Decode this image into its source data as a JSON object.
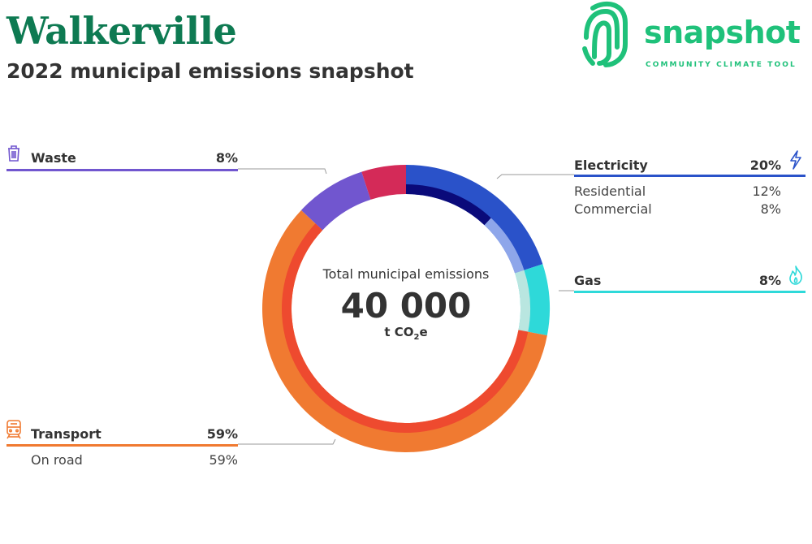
{
  "header": {
    "title": "Walkerville",
    "subtitle": "2022 municipal emissions snapshot"
  },
  "logo": {
    "wordmark": "snapshot",
    "tagline": "COMMUNITY CLIMATE TOOL",
    "icon": "fingerprint-icon",
    "color": "#1fc17a"
  },
  "chart_data": {
    "type": "pie",
    "variant": "donut",
    "center_label": "Total municipal emissions",
    "total_display": "40 000",
    "total": 40000,
    "unit_prefix": "t CO",
    "unit_sub": "2",
    "unit_suffix": "e",
    "categories": [
      {
        "name": "Electricity",
        "pct_label": "20%",
        "value": 20,
        "color": "#2a52c9",
        "icon": "lightning-icon",
        "subcategories": [
          {
            "name": "Residential",
            "pct_label": "12%",
            "value": 12,
            "color": "#0a0a7a"
          },
          {
            "name": "Commercial",
            "pct_label": "8%",
            "value": 8,
            "color": "#8ea6ea"
          }
        ]
      },
      {
        "name": "Gas",
        "pct_label": "8%",
        "value": 8,
        "color": "#2ed9d9",
        "icon": "flame-icon",
        "subcategories": [
          {
            "name": "",
            "value": 8,
            "color": "#b9e6e0"
          }
        ]
      },
      {
        "name": "Transport",
        "pct_label": "59%",
        "value": 59,
        "color": "#f07a31",
        "icon": "train-icon",
        "subcategories": [
          {
            "name": "On road",
            "pct_label": "59%",
            "value": 59,
            "color": "#ee4a2f"
          }
        ]
      },
      {
        "name": "Waste",
        "pct_label": "8%",
        "value": 8,
        "color": "#7156cf",
        "icon": "trash-icon",
        "subcategories": []
      },
      {
        "name": "",
        "value": 5,
        "color": "#d42a58",
        "subcategories": []
      }
    ]
  }
}
